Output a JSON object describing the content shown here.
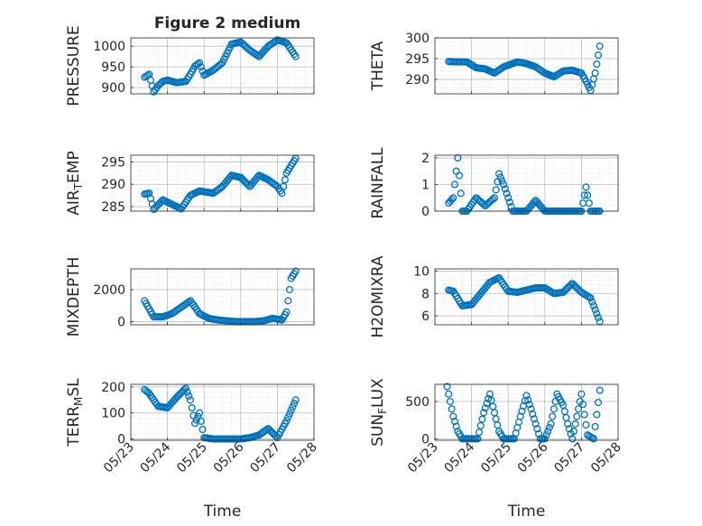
{
  "figure": {
    "title": "Figure 2 medium"
  },
  "colors": {
    "marker": "#0072BD",
    "axis": "#262626",
    "grid": "#bdbdbd",
    "minor_grid": "#dddddd"
  },
  "chart_data": [
    {
      "type": "scatter",
      "ylabel": "PRESSURE",
      "ylim": [
        885,
        1020
      ],
      "yticks": [
        900,
        950,
        1000
      ],
      "yticklabels": [
        "900",
        "950",
        "1000"
      ],
      "xlim": [
        "2023-05-23",
        "2023-05-28"
      ],
      "x": [
        "2023-05-23 09:00",
        "2023-05-23 12:00",
        "2023-05-23 15:00",
        "2023-05-23 18:00",
        "2023-05-23 21:00",
        "2023-05-24 00:00",
        "2023-05-24 06:00",
        "2023-05-24 12:00",
        "2023-05-24 15:00",
        "2023-05-24 18:00",
        "2023-05-24 21:00",
        "2023-05-25 00:00",
        "2023-05-25 06:00",
        "2023-05-25 12:00",
        "2023-05-25 18:00",
        "2023-05-26 00:00",
        "2023-05-26 06:00",
        "2023-05-26 12:00",
        "2023-05-26 18:00",
        "2023-05-27 00:00",
        "2023-05-27 06:00",
        "2023-05-27 12:00"
      ],
      "y": [
        925,
        932,
        890,
        905,
        915,
        918,
        912,
        915,
        932,
        952,
        960,
        930,
        942,
        960,
        1005,
        1010,
        990,
        975,
        1000,
        1015,
        1008,
        975
      ]
    },
    {
      "type": "scatter",
      "ylabel": "THETA",
      "ylim": [
        286.5,
        300
      ],
      "yticks": [
        290,
        295,
        300
      ],
      "yticklabels": [
        "290",
        "295",
        "300"
      ],
      "xlim": [
        "2023-05-23",
        "2023-05-28"
      ],
      "x": [
        "2023-05-23 09:00",
        "2023-05-23 15:00",
        "2023-05-23 21:00",
        "2023-05-24 03:00",
        "2023-05-24 09:00",
        "2023-05-24 15:00",
        "2023-05-24 21:00",
        "2023-05-25 06:00",
        "2023-05-25 12:00",
        "2023-05-25 18:00",
        "2023-05-26 00:00",
        "2023-05-26 06:00",
        "2023-05-26 12:00",
        "2023-05-26 18:00",
        "2023-05-27 00:00",
        "2023-05-27 03:00",
        "2023-05-27 06:00",
        "2023-05-27 09:00",
        "2023-05-27 12:00"
      ],
      "y": [
        294.3,
        294.2,
        294.2,
        292.8,
        292.5,
        291.5,
        293.0,
        294.2,
        293.8,
        293.0,
        291.5,
        290.6,
        292.0,
        292.2,
        291.5,
        289.5,
        287.3,
        291.5,
        298.0
      ]
    },
    {
      "type": "scatter",
      "ylabel": "AIR_TEMP",
      "ylim": [
        284,
        296.5
      ],
      "yticks": [
        285,
        290,
        295
      ],
      "yticklabels": [
        "285",
        "290",
        "295"
      ],
      "xlim": [
        "2023-05-23",
        "2023-05-28"
      ],
      "x": [
        "2023-05-23 09:00",
        "2023-05-23 12:00",
        "2023-05-23 15:00",
        "2023-05-23 21:00",
        "2023-05-24 03:00",
        "2023-05-24 09:00",
        "2023-05-24 15:00",
        "2023-05-24 21:00",
        "2023-05-25 06:00",
        "2023-05-25 12:00",
        "2023-05-25 18:00",
        "2023-05-26 00:00",
        "2023-05-26 06:00",
        "2023-05-26 12:00",
        "2023-05-26 18:00",
        "2023-05-27 00:00",
        "2023-05-27 03:00",
        "2023-05-27 06:00",
        "2023-05-27 12:00"
      ],
      "y": [
        287.8,
        288.0,
        284.4,
        286.5,
        285.5,
        284.5,
        287.5,
        288.5,
        288.0,
        289.5,
        292.0,
        291.5,
        289.5,
        292.0,
        291.0,
        289.5,
        288.0,
        292.5,
        295.8
      ]
    },
    {
      "type": "scatter",
      "ylabel": "RAINFALL",
      "ylim": [
        0,
        2.1
      ],
      "yticks": [
        0,
        1,
        2
      ],
      "yticklabels": [
        "0",
        "1",
        "2"
      ],
      "xlim": [
        "2023-05-23",
        "2023-05-28"
      ],
      "x": [
        "2023-05-23 09:00",
        "2023-05-23 12:00",
        "2023-05-23 15:00",
        "2023-05-23 18:00",
        "2023-05-23 21:00",
        "2023-05-24 03:00",
        "2023-05-24 09:00",
        "2023-05-24 15:00",
        "2023-05-24 18:00",
        "2023-05-24 21:00",
        "2023-05-25 03:00",
        "2023-05-25 12:00",
        "2023-05-25 18:00",
        "2023-05-26 00:00",
        "2023-05-26 06:00",
        "2023-05-26 12:00",
        "2023-05-26 18:00",
        "2023-05-27 00:00",
        "2023-05-27 03:00",
        "2023-05-27 06:00",
        "2023-05-27 12:00"
      ],
      "y": [
        0.3,
        0.5,
        2.0,
        0.0,
        0.0,
        0.5,
        0.2,
        0.5,
        1.4,
        1.0,
        0.0,
        0.0,
        0.4,
        0.0,
        0.0,
        0.0,
        0.0,
        0.0,
        0.9,
        0.0,
        0.0
      ]
    },
    {
      "type": "scatter",
      "ylabel": "MIXDEPTH",
      "ylim": [
        -200,
        3300
      ],
      "yticks": [
        0,
        2000
      ],
      "yticklabels": [
        "0",
        "2000"
      ],
      "xlim": [
        "2023-05-23",
        "2023-05-28"
      ],
      "x": [
        "2023-05-23 09:00",
        "2023-05-23 12:00",
        "2023-05-23 15:00",
        "2023-05-23 21:00",
        "2023-05-24 03:00",
        "2023-05-24 09:00",
        "2023-05-24 15:00",
        "2023-05-24 21:00",
        "2023-05-25 03:00",
        "2023-05-25 09:00",
        "2023-05-25 15:00",
        "2023-05-25 21:00",
        "2023-05-26 03:00",
        "2023-05-26 09:00",
        "2023-05-26 15:00",
        "2023-05-26 21:00",
        "2023-05-27 03:00",
        "2023-05-27 06:00",
        "2023-05-27 09:00",
        "2023-05-27 12:00"
      ],
      "y": [
        1300,
        800,
        300,
        300,
        500,
        900,
        1300,
        500,
        200,
        100,
        50,
        0,
        0,
        0,
        50,
        200,
        100,
        600,
        2700,
        3150
      ]
    },
    {
      "type": "scatter",
      "ylabel": "H2OMIXRA",
      "ylim": [
        5.2,
        10.2
      ],
      "yticks": [
        6,
        8,
        10
      ],
      "yticklabels": [
        "6",
        "8",
        "10"
      ],
      "xlim": [
        "2023-05-23",
        "2023-05-28"
      ],
      "x": [
        "2023-05-23 09:00",
        "2023-05-23 12:00",
        "2023-05-23 18:00",
        "2023-05-24 00:00",
        "2023-05-24 06:00",
        "2023-05-24 12:00",
        "2023-05-24 18:00",
        "2023-05-25 00:00",
        "2023-05-25 06:00",
        "2023-05-25 12:00",
        "2023-05-25 18:00",
        "2023-05-26 00:00",
        "2023-05-26 06:00",
        "2023-05-26 12:00",
        "2023-05-26 18:00",
        "2023-05-27 00:00",
        "2023-05-27 06:00",
        "2023-05-27 12:00"
      ],
      "y": [
        8.3,
        8.2,
        6.9,
        7.0,
        8.0,
        9.0,
        9.4,
        8.2,
        8.1,
        8.3,
        8.5,
        8.5,
        8.0,
        8.1,
        8.9,
        8.1,
        7.6,
        5.5
      ]
    },
    {
      "type": "scatter",
      "ylabel": "TERR_MSL",
      "ylim": [
        -5,
        210
      ],
      "yticks": [
        0,
        100,
        200
      ],
      "yticklabels": [
        "0",
        "100",
        "200"
      ],
      "xlim": [
        "2023-05-23",
        "2023-05-28"
      ],
      "xticklabels": [
        "05/23",
        "05/24",
        "05/25",
        "05/26",
        "05/27",
        "05/28"
      ],
      "xlabel": "Time",
      "x": [
        "2023-05-23 09:00",
        "2023-05-23 12:00",
        "2023-05-23 18:00",
        "2023-05-24 00:00",
        "2023-05-24 06:00",
        "2023-05-24 12:00",
        "2023-05-24 15:00",
        "2023-05-24 18:00",
        "2023-05-24 21:00",
        "2023-05-25 00:00",
        "2023-05-25 06:00",
        "2023-05-25 12:00",
        "2023-05-25 18:00",
        "2023-05-26 00:00",
        "2023-05-26 06:00",
        "2023-05-26 12:00",
        "2023-05-26 18:00",
        "2023-05-27 00:00",
        "2023-05-27 06:00",
        "2023-05-27 12:00"
      ],
      "y": [
        190,
        175,
        125,
        120,
        160,
        195,
        150,
        60,
        100,
        5,
        0,
        0,
        0,
        0,
        5,
        15,
        40,
        5,
        70,
        150
      ]
    },
    {
      "type": "scatter",
      "ylabel": "SUN_FLUX",
      "ylim": [
        -20,
        730
      ],
      "yticks": [
        0,
        500
      ],
      "yticklabels": [
        "0",
        "500"
      ],
      "xlim": [
        "2023-05-23",
        "2023-05-28"
      ],
      "xticklabels": [
        "05/23",
        "05/24",
        "05/25",
        "05/26",
        "05/27",
        "05/28"
      ],
      "xlabel": "Time",
      "x": [
        "2023-05-23 08:00",
        "2023-05-23 12:00",
        "2023-05-23 15:00",
        "2023-05-23 18:00",
        "2023-05-23 21:00",
        "2023-05-24 00:00",
        "2023-05-24 04:00",
        "2023-05-24 08:00",
        "2023-05-24 12:00",
        "2023-05-24 15:00",
        "2023-05-24 18:00",
        "2023-05-24 21:00",
        "2023-05-25 00:00",
        "2023-05-25 04:00",
        "2023-05-25 08:00",
        "2023-05-25 12:00",
        "2023-05-25 15:00",
        "2023-05-25 18:00",
        "2023-05-25 21:00",
        "2023-05-26 00:00",
        "2023-05-26 04:00",
        "2023-05-26 08:00",
        "2023-05-26 12:00",
        "2023-05-26 15:00",
        "2023-05-26 18:00",
        "2023-05-26 21:00",
        "2023-05-27 00:00",
        "2023-05-27 04:00",
        "2023-05-27 08:00",
        "2023-05-27 12:00"
      ],
      "y": [
        700,
        300,
        100,
        0,
        0,
        0,
        0,
        350,
        600,
        350,
        100,
        0,
        0,
        0,
        300,
        580,
        400,
        200,
        0,
        0,
        200,
        600,
        450,
        200,
        0,
        300,
        600,
        50,
        0,
        650
      ]
    }
  ]
}
